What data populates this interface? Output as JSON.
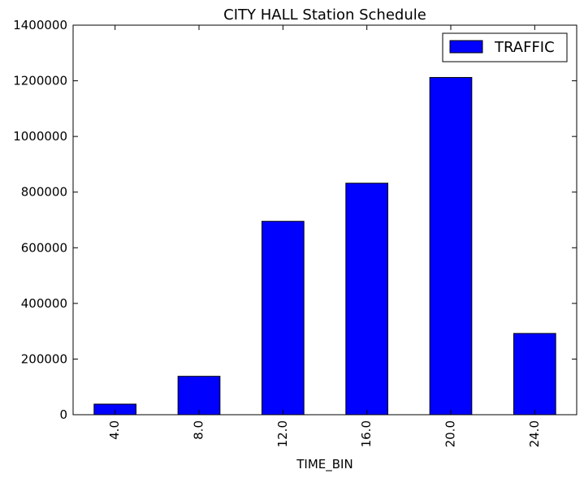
{
  "chart_data": {
    "type": "bar",
    "title": "CITY HALL Station Schedule",
    "xlabel": "TIME_BIN",
    "ylabel": "",
    "categories": [
      "4.0",
      "8.0",
      "12.0",
      "16.0",
      "20.0",
      "24.0"
    ],
    "series": [
      {
        "name": "TRAFFIC",
        "color": "#0000ff",
        "values": [
          38000,
          138000,
          695000,
          832000,
          1212000,
          292000
        ]
      }
    ],
    "ylim": [
      0,
      1400000
    ],
    "yticks": [
      0,
      200000,
      400000,
      600000,
      800000,
      1000000,
      1200000,
      1400000
    ],
    "ytick_labels": [
      "0",
      "200000",
      "400000",
      "600000",
      "800000",
      "1000000",
      "1200000",
      "1400000"
    ],
    "legend_position": "top-right",
    "grid": false
  }
}
